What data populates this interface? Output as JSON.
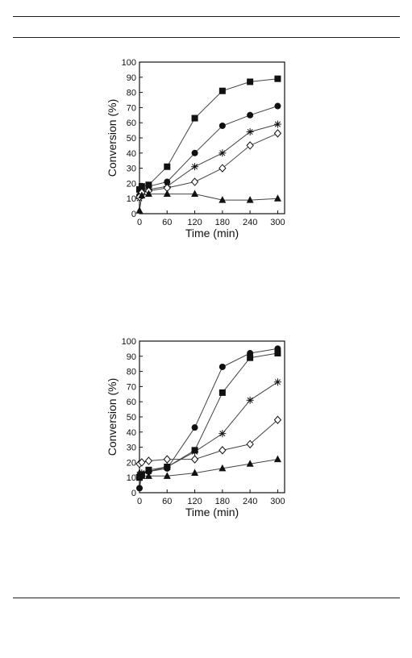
{
  "chart_data": [
    {
      "type": "line",
      "title": "",
      "xlabel": "Time (min)",
      "ylabel": "Conversion (%)",
      "xlim": [
        0,
        315
      ],
      "ylim": [
        0,
        100
      ],
      "xticks": [
        0,
        60,
        120,
        180,
        240,
        300
      ],
      "yticks": [
        0,
        10,
        20,
        30,
        40,
        50,
        60,
        70,
        80,
        90,
        100
      ],
      "grid": false,
      "legend": "none",
      "series": [
        {
          "marker": "square-filled",
          "x": [
            0,
            5,
            20,
            60,
            120,
            180,
            240,
            300
          ],
          "y": [
            16,
            18,
            19,
            31,
            63,
            81,
            87,
            89
          ]
        },
        {
          "marker": "circle-filled",
          "x": [
            0,
            5,
            20,
            60,
            120,
            180,
            240,
            300
          ],
          "y": [
            12,
            15,
            18,
            21,
            40,
            58,
            65,
            71
          ]
        },
        {
          "marker": "star",
          "x": [
            0,
            5,
            20,
            60,
            120,
            180,
            240,
            300
          ],
          "y": [
            10,
            13,
            16,
            18,
            31,
            40,
            54,
            59
          ]
        },
        {
          "marker": "diamond-open",
          "x": [
            0,
            5,
            20,
            60,
            120,
            180,
            240,
            300
          ],
          "y": [
            11,
            14,
            15,
            17,
            21,
            30,
            45,
            53
          ]
        },
        {
          "marker": "triangle-filled",
          "x": [
            0,
            5,
            20,
            60,
            120,
            180,
            240,
            300
          ],
          "y": [
            2,
            12,
            13,
            13,
            13,
            9,
            9,
            10
          ]
        }
      ]
    },
    {
      "type": "line",
      "title": "",
      "xlabel": "Time (min)",
      "ylabel": "Conversion (%)",
      "xlim": [
        0,
        315
      ],
      "ylim": [
        0,
        100
      ],
      "xticks": [
        0,
        60,
        120,
        180,
        240,
        300
      ],
      "yticks": [
        0,
        10,
        20,
        30,
        40,
        50,
        60,
        70,
        80,
        90,
        100
      ],
      "grid": false,
      "legend": "none",
      "series": [
        {
          "marker": "circle-filled",
          "x": [
            0,
            5,
            20,
            60,
            120,
            180,
            240,
            300
          ],
          "y": [
            3,
            12,
            14,
            16,
            43,
            83,
            92,
            95
          ]
        },
        {
          "marker": "square-filled",
          "x": [
            0,
            5,
            20,
            60,
            120,
            180,
            240,
            300
          ],
          "y": [
            10,
            12,
            15,
            17,
            28,
            66,
            89,
            92
          ]
        },
        {
          "marker": "star",
          "x": [
            0,
            5,
            20,
            60,
            120,
            180,
            240,
            300
          ],
          "y": [
            12,
            13,
            14,
            17,
            27,
            39,
            61,
            73
          ]
        },
        {
          "marker": "diamond-open",
          "x": [
            0,
            5,
            20,
            60,
            120,
            180,
            240,
            300
          ],
          "y": [
            19,
            20,
            21,
            22,
            22,
            28,
            32,
            48
          ]
        },
        {
          "marker": "triangle-filled",
          "x": [
            0,
            5,
            20,
            60,
            120,
            180,
            240,
            300
          ],
          "y": [
            13,
            11,
            11,
            11,
            13,
            16,
            19,
            22
          ]
        }
      ]
    }
  ]
}
